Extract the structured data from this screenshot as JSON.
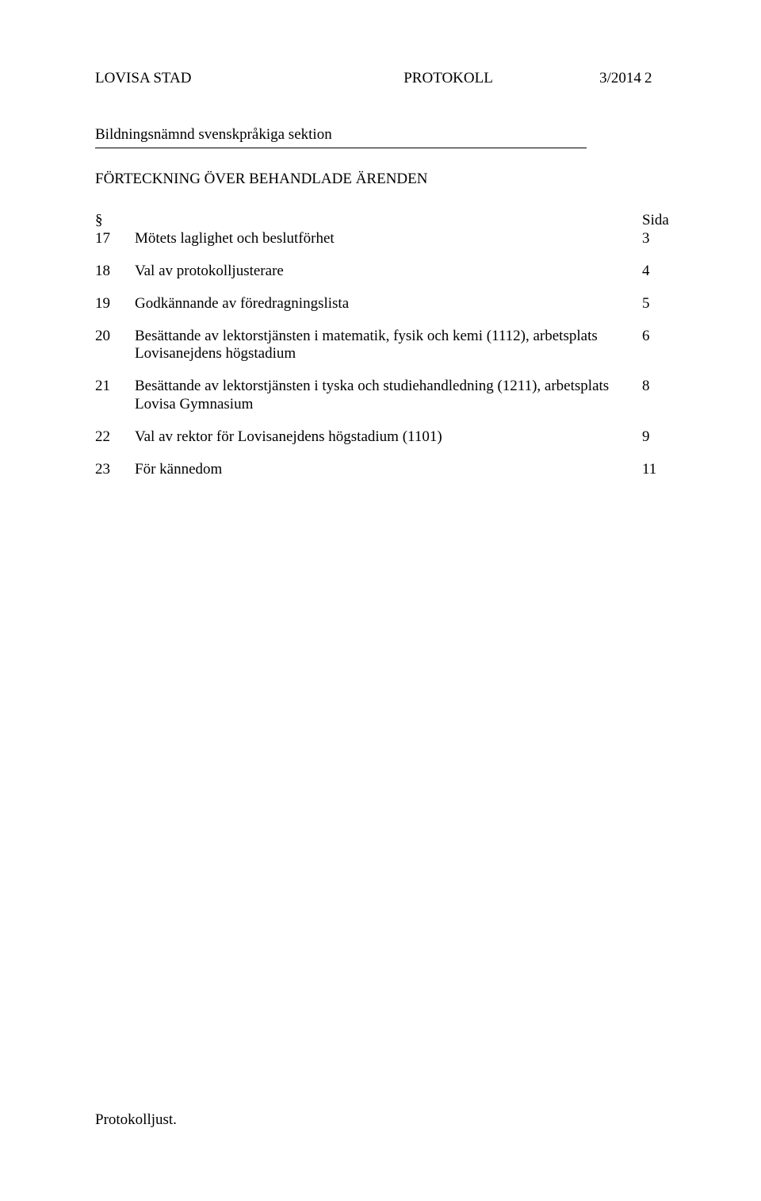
{
  "header": {
    "org": "LOVISA STAD",
    "doc_type": "PROTOKOLL",
    "doc_number": "3/2014",
    "page_num": "2"
  },
  "committee": "Bildningsnämnd svenskpråkiga sektion",
  "list_heading": "FÖRTECKNING ÖVER BEHANDLADE ÄRENDEN",
  "columns": {
    "symbol": "§",
    "page_label": "Sida"
  },
  "items": [
    {
      "num": "17",
      "title": "Mötets laglighet och beslutförhet",
      "page": "3"
    },
    {
      "num": "18",
      "title": "Val av protokolljusterare",
      "page": "4"
    },
    {
      "num": "19",
      "title": "Godkännande av föredragningslista",
      "page": "5"
    },
    {
      "num": "20",
      "title": "Besättande av lektorstjänsten i matematik, fysik och kemi (1112), arbetsplats Lovisanejdens högstadium",
      "page": "6"
    },
    {
      "num": "21",
      "title": "Besättande av lektorstjänsten i tyska och studiehandledning (1211), arbetsplats Lovisa Gymnasium",
      "page": "8"
    },
    {
      "num": "22",
      "title": "Val av rektor för Lovisanejdens högstadium (1101)",
      "page": "9"
    },
    {
      "num": "23",
      "title": "För kännedom",
      "page": "11"
    }
  ],
  "footer": "Protokolljust."
}
